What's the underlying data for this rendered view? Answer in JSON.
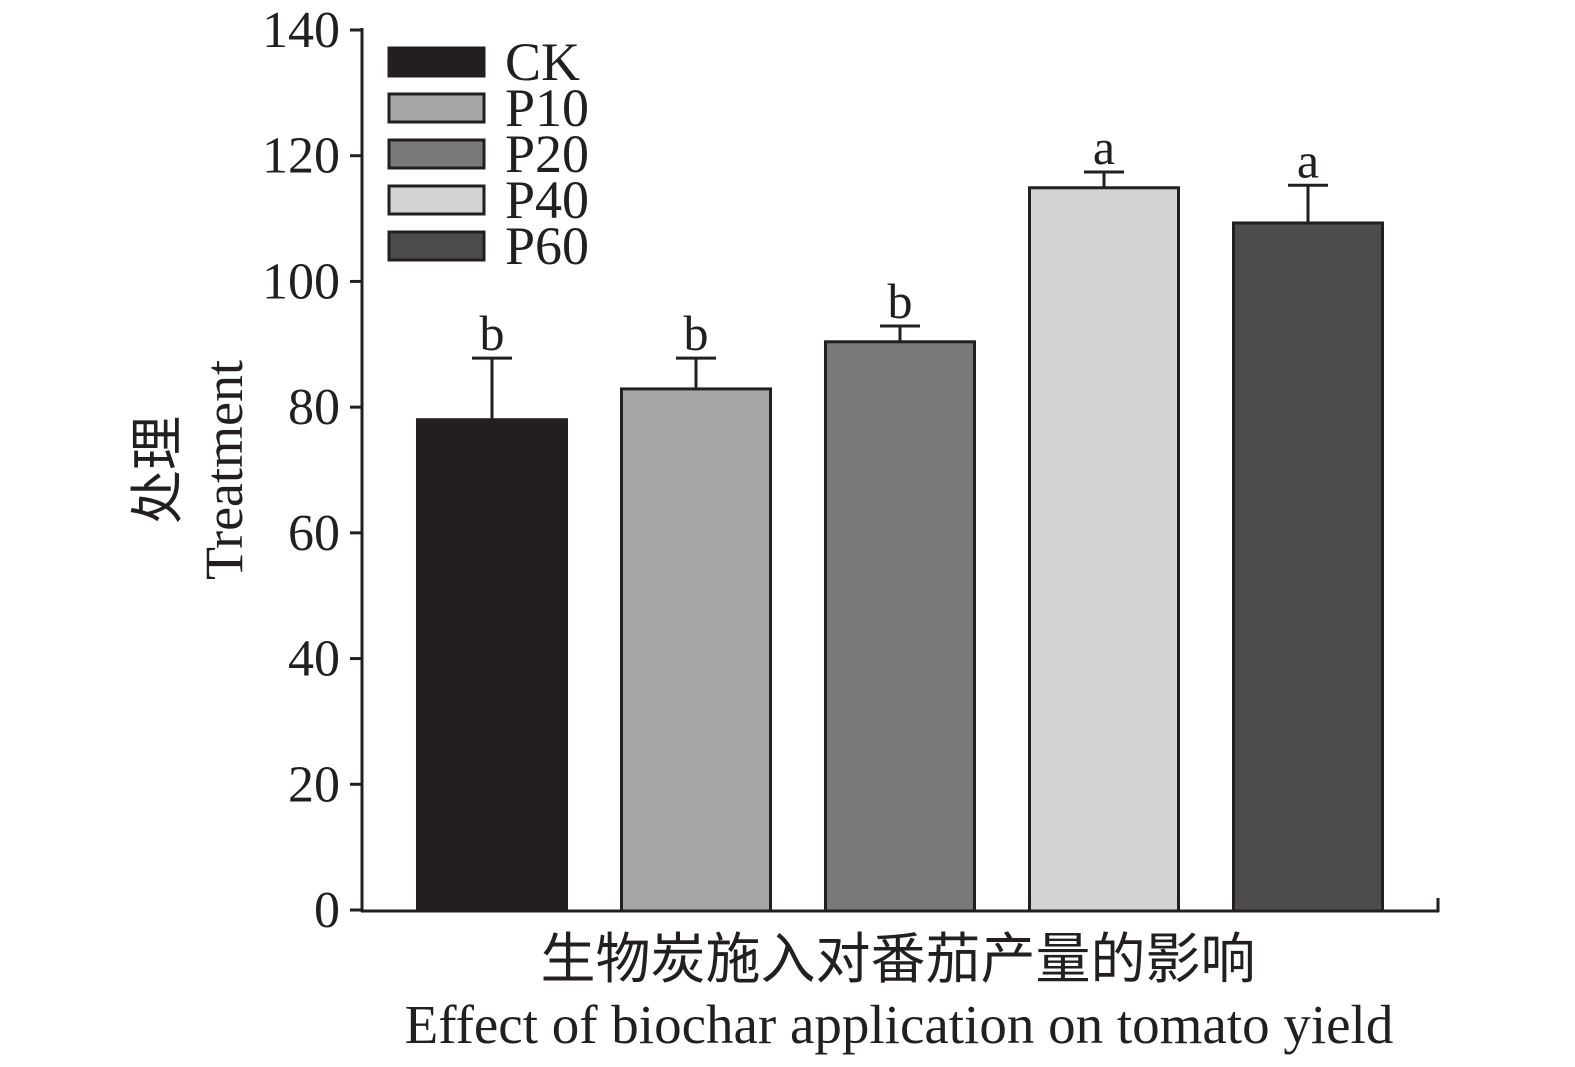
{
  "chart_data": {
    "type": "bar",
    "categories": [
      "CK",
      "P10",
      "P20",
      "P40",
      "P60"
    ],
    "values": [
      78.0,
      82.9,
      90.4,
      114.9,
      109.3
    ],
    "errors": [
      9.8,
      4.9,
      2.5,
      2.5,
      6.0
    ],
    "significance": [
      "b",
      "b",
      "b",
      "a",
      "a"
    ],
    "colors": [
      "#231f20",
      "#a7a6a7",
      "#7a7879",
      "#d3d3d3",
      "#4d4b4c"
    ],
    "ylabel": [
      "处理",
      "Treatment"
    ],
    "xlabel": [
      "生物炭施入对番茄产量的影响",
      "Effect of biochar application on tomato yield"
    ],
    "ylim": [
      0,
      140
    ],
    "yticks": [
      0,
      20,
      40,
      60,
      80,
      100,
      120,
      140
    ],
    "legend_position": "top-left",
    "grid": false
  }
}
